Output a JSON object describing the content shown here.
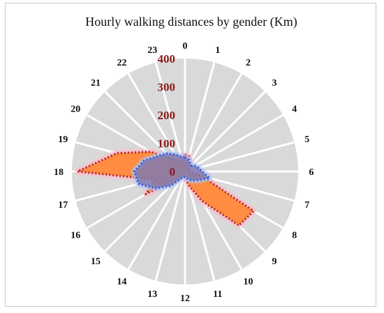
{
  "chart_data": {
    "type": "radar",
    "title": "Hourly walking distances by gender (Km)",
    "categories": [
      "0",
      "1",
      "2",
      "3",
      "4",
      "5",
      "6",
      "7",
      "8",
      "9",
      "10",
      "11",
      "12",
      "13",
      "14",
      "15",
      "16",
      "17",
      "18",
      "19",
      "20",
      "21",
      "22",
      "23"
    ],
    "radial_ticks": [
      "0",
      "100",
      "200",
      "300",
      "400"
    ],
    "rlim": [
      0,
      400
    ],
    "grid": true,
    "series": [
      {
        "color": "#ff8c40",
        "line_color": "#a52a2a",
        "line_style": "dotted",
        "glow_color": "#ffb6c8",
        "values": [
          60,
          55,
          40,
          20,
          15,
          10,
          10,
          60,
          280,
          270,
          120,
          50,
          20,
          10,
          15,
          35,
          160,
          110,
          380,
          250,
          140,
          60,
          45,
          45
        ]
      },
      {
        "color": "#7f7ab0",
        "line_color": "#3b58d8",
        "line_style": "dotted",
        "glow_color": "#b0c4f0",
        "values": [
          50,
          45,
          35,
          30,
          40,
          50,
          60,
          90,
          60,
          45,
          35,
          25,
          20,
          20,
          30,
          70,
          120,
          170,
          180,
          150,
          110,
          90,
          70,
          55
        ]
      }
    ],
    "background_color": "#d9d9d9",
    "spoke_color": "#ffffff"
  }
}
